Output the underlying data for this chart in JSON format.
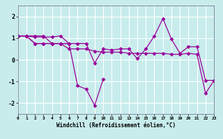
{
  "xlabel": "Windchill (Refroidissement éolien,°C)",
  "background_color": "#c8ecec",
  "line_color": "#990099",
  "grid_color": "#ffffff",
  "xlim": [
    0,
    23
  ],
  "ylim": [
    -2.5,
    2.5
  ],
  "xticks": [
    0,
    1,
    2,
    3,
    4,
    5,
    6,
    7,
    8,
    9,
    10,
    11,
    12,
    13,
    14,
    15,
    16,
    17,
    18,
    19,
    20,
    21,
    22,
    23
  ],
  "yticks": [
    -2,
    -1,
    0,
    1,
    2
  ],
  "series": [
    [
      1.1,
      1.1,
      1.1,
      1.1,
      0.75,
      0.75,
      0.75,
      0.75,
      0.75,
      -0.15,
      0.5,
      0.45,
      0.5,
      0.5,
      0.05,
      0.5,
      1.1,
      1.9,
      0.95,
      0.3,
      0.6,
      0.6,
      -0.95,
      -0.95
    ],
    [
      1.1,
      1.1,
      1.05,
      1.05,
      1.05,
      1.1,
      0.75,
      -1.2,
      -1.35,
      -2.1,
      -0.9,
      null,
      null,
      null,
      null,
      null,
      null,
      null,
      null,
      null,
      null,
      null,
      null,
      null
    ],
    [
      1.1,
      1.1,
      0.75,
      0.75,
      0.75,
      0.75,
      0.75,
      null,
      null,
      null,
      null,
      null,
      null,
      null,
      null,
      null,
      null,
      null,
      null,
      null,
      null,
      null,
      null,
      null
    ],
    [
      1.1,
      1.1,
      0.75,
      0.75,
      0.75,
      0.75,
      0.5,
      0.5,
      0.5,
      0.4,
      0.35,
      0.35,
      0.35,
      0.3,
      0.3,
      0.3,
      0.3,
      0.3,
      0.25,
      0.25,
      0.3,
      0.25,
      -1.55,
      -0.95
    ]
  ],
  "marker": "D",
  "markersize": 2.5,
  "linewidth": 0.9
}
